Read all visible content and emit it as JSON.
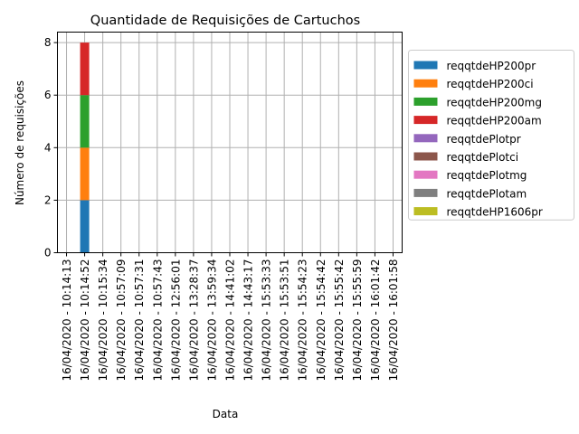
{
  "chart_data": {
    "type": "bar",
    "stacked": true,
    "title": "Quantidade de Requisições de Cartuchos",
    "xlabel": "Data",
    "ylabel": "Número de requisições",
    "ylim": [
      0,
      8.4
    ],
    "yticks": [
      0,
      2,
      4,
      6,
      8
    ],
    "grid": true,
    "legend_position": "right",
    "categories": [
      "16/04/2020 - 10:14:13",
      "16/04/2020 - 10:14:52",
      "16/04/2020 - 10:15:34",
      "16/04/2020 - 10:57:09",
      "16/04/2020 - 10:57:31",
      "16/04/2020 - 10:57:43",
      "16/04/2020 - 12:56:01",
      "16/04/2020 - 13:28:37",
      "16/04/2020 - 13:59:34",
      "16/04/2020 - 14:41:02",
      "16/04/2020 - 14:43:17",
      "16/04/2020 - 15:53:33",
      "16/04/2020 - 15:53:51",
      "16/04/2020 - 15:54:23",
      "16/04/2020 - 15:54:42",
      "16/04/2020 - 15:55:42",
      "16/04/2020 - 15:55:59",
      "16/04/2020 - 16:01:42",
      "16/04/2020 - 16:01:58"
    ],
    "series": [
      {
        "name": "reqqtdeHP200pr",
        "color": "#1f77b4",
        "values": [
          0,
          2,
          0,
          0,
          0,
          0,
          0,
          0,
          0,
          0,
          0,
          0,
          0,
          0,
          0,
          0,
          0,
          0,
          0
        ]
      },
      {
        "name": "reqqtdeHP200ci",
        "color": "#ff7f0e",
        "values": [
          0,
          2,
          0,
          0,
          0,
          0,
          0,
          0,
          0,
          0,
          0,
          0,
          0,
          0,
          0,
          0,
          0,
          0,
          0
        ]
      },
      {
        "name": "reqqtdeHP200mg",
        "color": "#2ca02c",
        "values": [
          0,
          2,
          0,
          0,
          0,
          0,
          0,
          0,
          0,
          0,
          0,
          0,
          0,
          0,
          0,
          0,
          0,
          0,
          0
        ]
      },
      {
        "name": "reqqtdeHP200am",
        "color": "#d62728",
        "values": [
          0,
          2,
          0,
          0,
          0,
          0,
          0,
          0,
          0,
          0,
          0,
          0,
          0,
          0,
          0,
          0,
          0,
          0,
          0
        ]
      },
      {
        "name": "reqqtdePlotpr",
        "color": "#9467bd",
        "values": [
          0,
          0,
          0,
          0,
          0,
          0,
          0,
          0,
          0,
          0,
          0,
          0,
          0,
          0,
          0,
          0,
          0,
          0,
          0
        ]
      },
      {
        "name": "reqqtdePlotci",
        "color": "#8c564b",
        "values": [
          0,
          0,
          0,
          0,
          0,
          0,
          0,
          0,
          0,
          0,
          0,
          0,
          0,
          0,
          0,
          0,
          0,
          0,
          0
        ]
      },
      {
        "name": "reqqtdePlotmg",
        "color": "#e377c2",
        "values": [
          0,
          0,
          0,
          0,
          0,
          0,
          0,
          0,
          0,
          0,
          0,
          0,
          0,
          0,
          0,
          0,
          0,
          0,
          0
        ]
      },
      {
        "name": "reqqtdePlotam",
        "color": "#7f7f7f",
        "values": [
          0,
          0,
          0,
          0,
          0,
          0,
          0,
          0,
          0,
          0,
          0,
          0,
          0,
          0,
          0,
          0,
          0,
          0,
          0
        ]
      },
      {
        "name": "reqqtdeHP1606pr",
        "color": "#bcbd22",
        "values": [
          0,
          0,
          0,
          0,
          0,
          0,
          0,
          0,
          0,
          0,
          0,
          0,
          0,
          0,
          0,
          0,
          0,
          0,
          0
        ]
      }
    ]
  }
}
